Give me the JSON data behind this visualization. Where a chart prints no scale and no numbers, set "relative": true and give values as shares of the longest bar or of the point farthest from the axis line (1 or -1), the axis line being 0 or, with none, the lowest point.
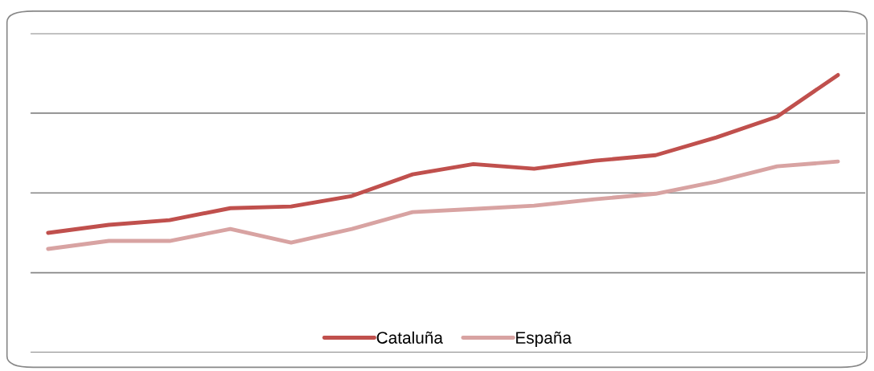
{
  "chart_data": {
    "type": "line",
    "relative": true,
    "categories": [
      null,
      null,
      null,
      null,
      null,
      null,
      null,
      null,
      null,
      null,
      null,
      null,
      null,
      null
    ],
    "series": [
      {
        "name": "Cataluña",
        "color": "#c0504d",
        "values": [
          0.431,
          0.46,
          0.477,
          0.52,
          0.526,
          0.564,
          0.642,
          0.679,
          0.662,
          0.691,
          0.711,
          0.775,
          0.85,
          1
        ]
      },
      {
        "name": "España",
        "color": "#d8a3a2",
        "values": [
          0.373,
          0.402,
          0.402,
          0.445,
          0.396,
          0.445,
          0.506,
          0.517,
          0.529,
          0.552,
          0.572,
          0.616,
          0.671,
          0.688
        ]
      }
    ],
    "grid": "y",
    "legend": "bottom",
    "line_style": "solid",
    "marker": "none"
  }
}
